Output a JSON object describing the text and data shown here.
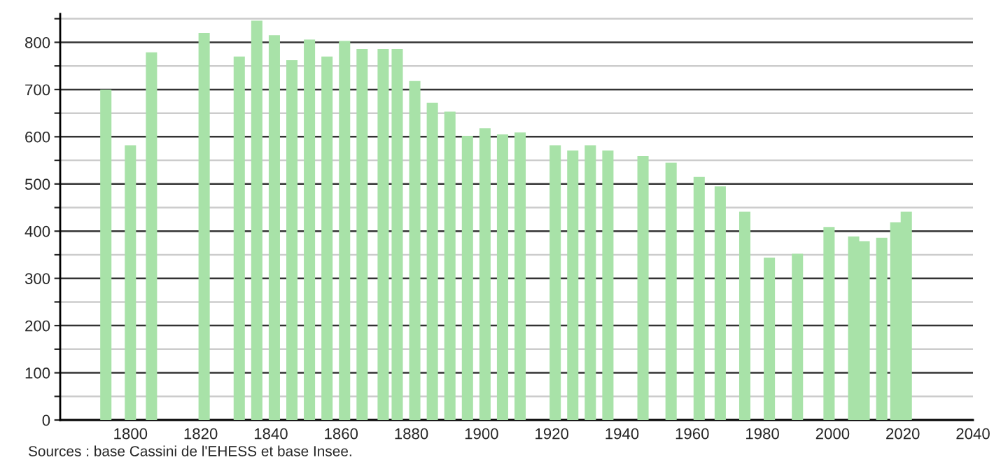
{
  "chart_data": {
    "type": "bar",
    "x": [
      1793,
      1800,
      1806,
      1821,
      1831,
      1836,
      1841,
      1846,
      1851,
      1856,
      1861,
      1866,
      1872,
      1876,
      1881,
      1886,
      1891,
      1896,
      1901,
      1906,
      1911,
      1921,
      1926,
      1931,
      1936,
      1946,
      1954,
      1962,
      1968,
      1975,
      1982,
      1990,
      1999,
      2006,
      2009,
      2014,
      2018,
      2021
    ],
    "values": [
      700,
      582,
      779,
      820,
      770,
      846,
      815,
      762,
      806,
      770,
      803,
      786,
      786,
      786,
      718,
      672,
      653,
      602,
      618,
      605,
      609,
      582,
      571,
      582,
      571,
      559,
      545,
      515,
      495,
      441,
      344,
      352,
      409,
      389,
      379,
      386,
      419,
      441
    ],
    "color": "#a8e2a8",
    "xlim": [
      1780,
      2040
    ],
    "xticks": [
      1800,
      1820,
      1840,
      1860,
      1880,
      1900,
      1920,
      1940,
      1960,
      1980,
      2000,
      2020,
      2040
    ],
    "ylim": [
      0,
      860
    ],
    "yticks": [
      0,
      {
        "value": 50,
        "label": null
      },
      100,
      {
        "value": 150,
        "label": null
      },
      200,
      {
        "value": 250,
        "label": null
      },
      300,
      {
        "value": 350,
        "label": null
      },
      400,
      {
        "value": 450,
        "label": null
      },
      500,
      {
        "value": 550,
        "label": null
      },
      600,
      {
        "value": 650,
        "label": null
      },
      700,
      {
        "value": 750,
        "label": null
      },
      800,
      {
        "value": 850,
        "label": null
      }
    ],
    "grid": "y",
    "annotations": [
      "Sources : base Cassini de l'EHESS et base Insee."
    ]
  }
}
